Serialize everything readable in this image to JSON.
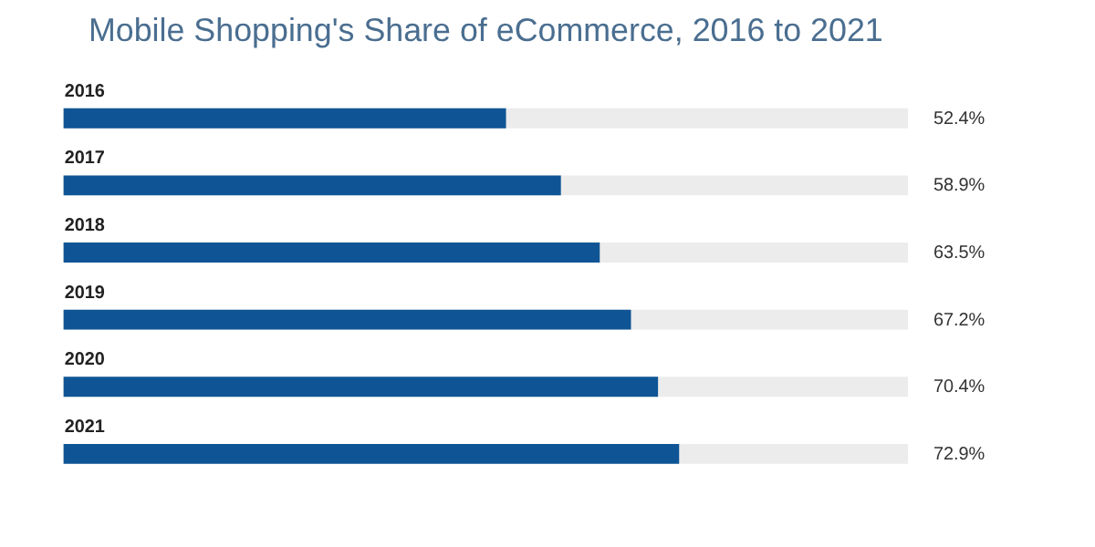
{
  "chart_data": {
    "type": "bar",
    "orientation": "horizontal",
    "title": "Mobile Shopping's Share of eCommerce, 2016 to 2021",
    "categories": [
      "2016",
      "2017",
      "2018",
      "2019",
      "2020",
      "2021"
    ],
    "values": [
      52.4,
      58.9,
      63.5,
      67.2,
      70.4,
      72.9
    ],
    "value_labels": [
      "52.4%",
      "58.9%",
      "63.5%",
      "67.2%",
      "70.4%",
      "72.9%"
    ],
    "color": "#0f5595",
    "xlim": [
      0,
      100
    ],
    "tick_labels": "y",
    "grid": false
  }
}
